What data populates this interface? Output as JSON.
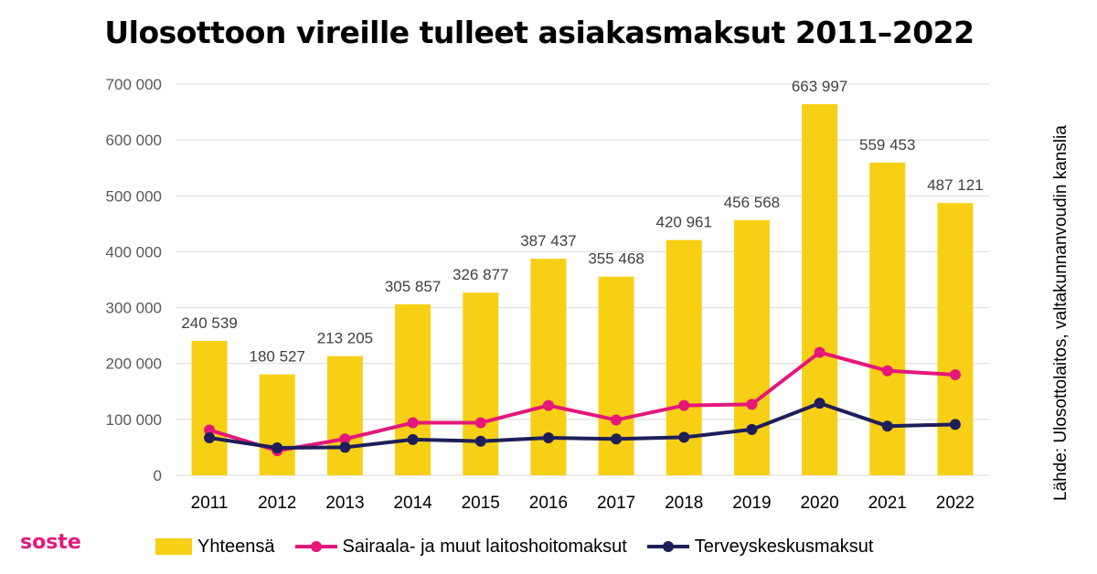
{
  "title": "Ulosottoon vireille tulleet asiakasmaksut 2011–2022",
  "source": "Lähde: Ulosottolaitos, valtakunnanvoudin kanslia",
  "brand": "soste",
  "colors": {
    "bar": "#f7cf15",
    "line_hospital": "#e5177a",
    "line_health_center": "#1e1e5a",
    "grid": "#d9d9d9",
    "axis_text": "#595959",
    "label_text": "#404040"
  },
  "legend": [
    {
      "label": "Yhteensä"
    },
    {
      "label": "Sairaala- ja muut laitoshoitomaksut"
    },
    {
      "label": "Terveyskeskusmaksut"
    }
  ],
  "chart_data": {
    "type": "bar",
    "categories": [
      "2011",
      "2012",
      "2013",
      "2014",
      "2015",
      "2016",
      "2017",
      "2018",
      "2019",
      "2020",
      "2021",
      "2022"
    ],
    "ylim": [
      0,
      700000
    ],
    "yticks": [
      0,
      100000,
      200000,
      300000,
      400000,
      500000,
      600000,
      700000
    ],
    "ytick_labels": [
      "0",
      "100 000",
      "200 000",
      "300 000",
      "400 000",
      "500 000",
      "600 000",
      "700 000"
    ],
    "grid": true,
    "legend_position": "bottom",
    "series": [
      {
        "name": "Yhteensä",
        "type": "bar",
        "values": [
          240539,
          180527,
          213205,
          305857,
          326877,
          387437,
          355468,
          420961,
          456568,
          663997,
          559453,
          487121
        ],
        "labels": [
          "240 539",
          "180 527",
          "213 205",
          "305 857",
          "326 877",
          "387 437",
          "355 468",
          "420 961",
          "456 568",
          "663 997",
          "559 453",
          "487 121"
        ]
      },
      {
        "name": "Sairaala- ja muut laitoshoitomaksut",
        "type": "line",
        "values": [
          81000,
          44000,
          65000,
          94000,
          94000,
          125000,
          99000,
          125000,
          127000,
          220000,
          187000,
          180000
        ]
      },
      {
        "name": "Terveyskeskusmaksut",
        "type": "line",
        "values": [
          67000,
          49000,
          50000,
          64000,
          61000,
          67000,
          65000,
          68000,
          82000,
          129000,
          88000,
          91000
        ]
      }
    ]
  }
}
